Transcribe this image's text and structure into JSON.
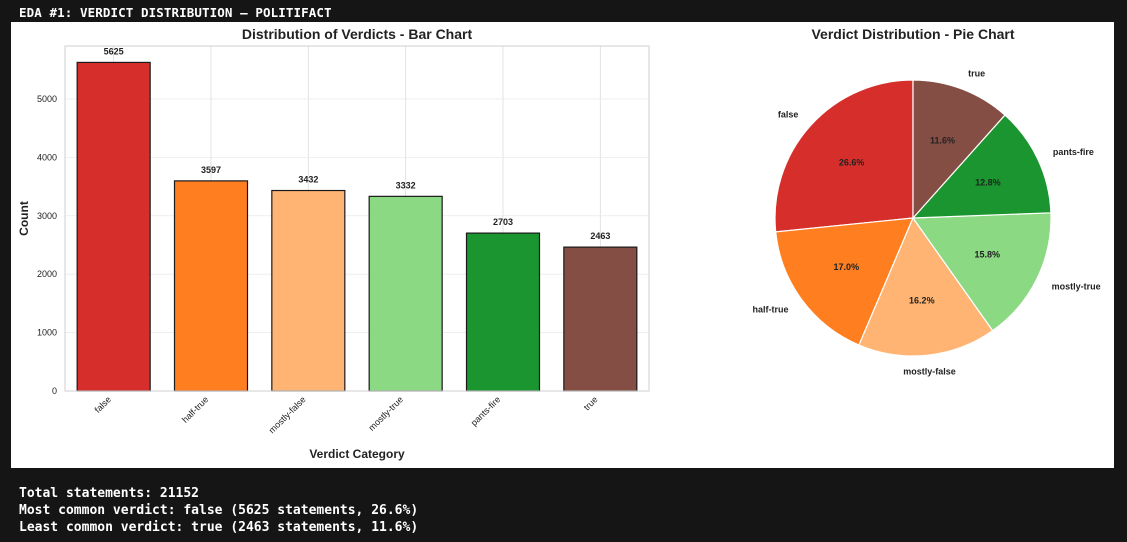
{
  "header": {
    "title": "EDA #1: VERDICT DISTRIBUTION – POLITIFACT"
  },
  "console": {
    "lines": [
      "Total statements: 21152",
      "Most common verdict: false (5625 statements, 26.6%)",
      "Least common verdict: true (2463 statements, 11.6%)"
    ]
  },
  "chart_data": [
    {
      "type": "bar",
      "title": "Distribution of Verdicts - Bar Chart",
      "xlabel": "Verdict Category",
      "ylabel": "Count",
      "categories": [
        "false",
        "half-true",
        "mostly-false",
        "mostly-true",
        "pants-fire",
        "true"
      ],
      "values": [
        5625,
        3597,
        3432,
        3332,
        2703,
        2463
      ],
      "data_labels": [
        "5625",
        "3597",
        "3432",
        "3332",
        "2703",
        "2463"
      ],
      "colors": [
        "#d62f2b",
        "#ff7f20",
        "#ffb473",
        "#8bd982",
        "#1a952f",
        "#844e45"
      ],
      "yticks": [
        0,
        1000,
        2000,
        3000,
        4000,
        5000
      ],
      "ylim": [
        0,
        5906
      ],
      "grid": true,
      "legend": "none"
    },
    {
      "type": "pie",
      "title": "Verdict Distribution - Pie Chart",
      "categories": [
        "false",
        "half-true",
        "mostly-false",
        "mostly-true",
        "pants-fire",
        "true"
      ],
      "values": [
        26.6,
        17.0,
        16.2,
        15.8,
        12.8,
        11.6
      ],
      "value_labels": [
        "26.6%",
        "17.0%",
        "16.2%",
        "15.8%",
        "12.8%",
        "11.6%"
      ],
      "colors": [
        "#d62f2b",
        "#ff7f20",
        "#ffb473",
        "#8bd982",
        "#1a952f",
        "#844e45"
      ],
      "start_angle_deg": 90,
      "direction": "counterclockwise",
      "legend": "none"
    }
  ]
}
